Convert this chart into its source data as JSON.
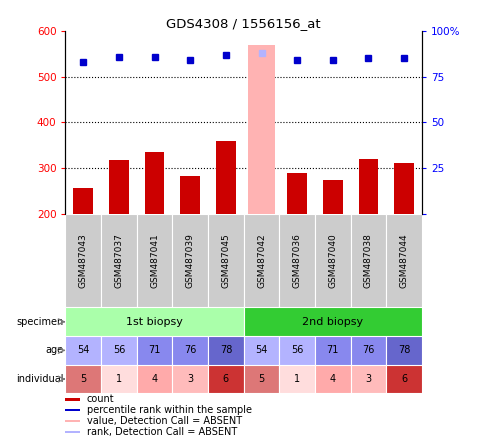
{
  "title": "GDS4308 / 1556156_at",
  "samples": [
    "GSM487043",
    "GSM487037",
    "GSM487041",
    "GSM487039",
    "GSM487045",
    "GSM487042",
    "GSM487036",
    "GSM487040",
    "GSM487038",
    "GSM487044"
  ],
  "counts": [
    255,
    318,
    335,
    283,
    358,
    570,
    288,
    273,
    320,
    310
  ],
  "percentile_ranks": [
    83,
    86,
    86,
    84,
    87,
    88,
    84,
    84,
    85,
    85
  ],
  "absent_sample_index": 5,
  "absent_count": 570,
  "absent_rank": 88,
  "ylim_left": [
    200,
    600
  ],
  "ylim_right": [
    0,
    100
  ],
  "yticks_left": [
    200,
    300,
    400,
    500,
    600
  ],
  "yticks_right": [
    0,
    25,
    50,
    75,
    100
  ],
  "bar_color": "#cc0000",
  "absent_bar_color": "#ffb3b3",
  "dot_color": "#0000cc",
  "absent_dot_color": "#b3b3ff",
  "specimen_labels": [
    "1st biopsy",
    "2nd biopsy"
  ],
  "specimen_spans": [
    [
      0,
      4
    ],
    [
      5,
      9
    ]
  ],
  "specimen_colors_light": "#aaffaa",
  "specimen_colors_dark": "#33cc33",
  "age_values": [
    54,
    56,
    71,
    76,
    78,
    54,
    56,
    71,
    76,
    78
  ],
  "age_colors": [
    "#b3b3ff",
    "#b3b3ff",
    "#8888ee",
    "#8888ee",
    "#6666cc",
    "#b3b3ff",
    "#b3b3ff",
    "#8888ee",
    "#8888ee",
    "#6666cc"
  ],
  "individual_values": [
    5,
    1,
    4,
    3,
    6,
    5,
    1,
    4,
    3,
    6
  ],
  "individual_colors": [
    "#dd7777",
    "#ffdddd",
    "#ffaaaa",
    "#ffbbbb",
    "#cc3333",
    "#dd7777",
    "#ffdddd",
    "#ffaaaa",
    "#ffbbbb",
    "#cc3333"
  ],
  "sample_box_color": "#cccccc",
  "legend_items": [
    {
      "color": "#cc0000",
      "label": "count"
    },
    {
      "color": "#0000cc",
      "label": "percentile rank within the sample"
    },
    {
      "color": "#ffb3b3",
      "label": "value, Detection Call = ABSENT"
    },
    {
      "color": "#b3b3ff",
      "label": "rank, Detection Call = ABSENT"
    }
  ]
}
